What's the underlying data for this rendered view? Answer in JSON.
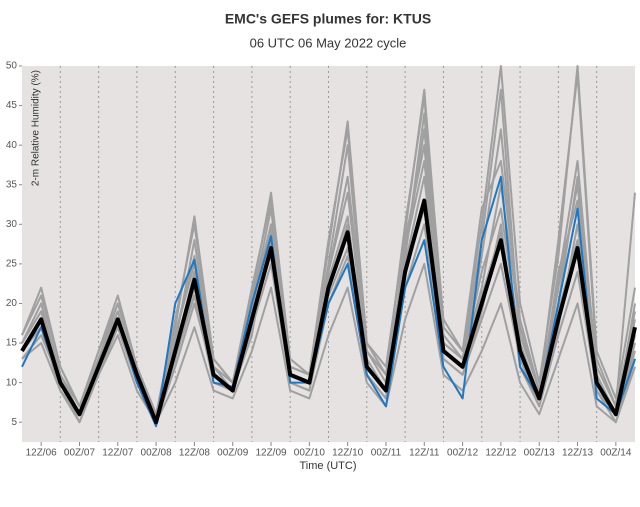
{
  "chart_data": {
    "type": "line",
    "title": "EMC's GEFS plumes for: KTUS",
    "subtitle": "06 UTC 06 May 2022 cycle",
    "ylabel": "2-m Relative Humidity (%)",
    "xlabel": "Time (UTC)",
    "categories": [
      null,
      "12Z/06",
      null,
      "00Z/07",
      null,
      "12Z/07",
      null,
      "00Z/08",
      null,
      "12Z/08",
      null,
      "00Z/09",
      null,
      "12Z/09",
      null,
      "00Z/10",
      null,
      "12Z/10",
      null,
      "00Z/11",
      null,
      "12Z/11",
      null,
      "00Z/12",
      null,
      "12Z/12",
      null,
      "00Z/13",
      null,
      "12Z/13",
      null,
      "00Z/14",
      null
    ],
    "ylim": [
      2.5,
      50
    ],
    "yticks": [
      5,
      10,
      15,
      20,
      25,
      30,
      35,
      40,
      45,
      50
    ],
    "series": [
      {
        "color": "#a0a0a0",
        "values": [
          16,
          22,
          12,
          7,
          14,
          20,
          12,
          6,
          18,
          30,
          13,
          10,
          22,
          33,
          12,
          11,
          28,
          42,
          15,
          11,
          30,
          46,
          18,
          14,
          30,
          50,
          20,
          10,
          26,
          50,
          14,
          8,
          22
        ]
      },
      {
        "color": "#a0a0a0",
        "values": [
          13,
          15,
          9,
          5,
          11,
          16,
          9,
          5,
          10,
          17,
          9,
          8,
          14,
          22,
          9,
          8,
          16,
          22,
          10,
          7,
          18,
          25,
          11,
          9,
          14,
          20,
          10,
          6,
          13,
          20,
          7,
          5,
          12
        ]
      },
      {
        "color": "#a0a0a0",
        "values": [
          15,
          19,
          11,
          6,
          13,
          19,
          11,
          6,
          16,
          26,
          12,
          9,
          20,
          30,
          11,
          10,
          24,
          34,
          13,
          9,
          27,
          38,
          15,
          13,
          24,
          32,
          15,
          8,
          22,
          35,
          11,
          6,
          20
        ]
      },
      {
        "color": "#a0a0a0",
        "values": [
          14,
          17,
          10,
          6,
          12,
          17,
          10,
          5,
          13,
          21,
          10,
          9,
          17,
          25,
          10,
          9,
          20,
          26,
          11,
          8,
          22,
          30,
          13,
          11,
          18,
          25,
          13,
          7,
          16,
          24,
          9,
          6,
          15
        ]
      },
      {
        "color": "#a0a0a0",
        "values": [
          15,
          20,
          11,
          6,
          13,
          19,
          11,
          6,
          15,
          28,
          12,
          10,
          19,
          29,
          12,
          11,
          25,
          40,
          14,
          11,
          26,
          42,
          16,
          13,
          22,
          35,
          17,
          9,
          20,
          36,
          12,
          7,
          34
        ]
      },
      {
        "color": "#a0a0a0",
        "values": [
          14,
          18,
          10,
          6,
          12,
          18,
          11,
          5,
          12,
          20,
          11,
          9,
          16,
          30,
          11,
          10,
          21,
          27,
          12,
          9,
          25,
          36,
          14,
          12,
          26,
          42,
          16,
          9,
          23,
          38,
          11,
          6,
          14
        ]
      },
      {
        "color": "#a0a0a0",
        "values": [
          13,
          16,
          10,
          5,
          11,
          17,
          10,
          5,
          14,
          24,
          10,
          9,
          19,
          26,
          10,
          9,
          23,
          31,
          11,
          8,
          28,
          40,
          13,
          11,
          19,
          30,
          12,
          7,
          17,
          30,
          10,
          6,
          18
        ]
      },
      {
        "color": "#a0a0a0",
        "values": [
          15,
          19,
          11,
          7,
          13,
          20,
          12,
          6,
          16,
          25,
          12,
          10,
          20,
          32,
          12,
          11,
          24,
          36,
          14,
          10,
          26,
          44,
          15,
          13,
          28,
          47,
          15,
          8,
          24,
          33,
          10,
          6,
          16
        ]
      },
      {
        "color": "#a0a0a0",
        "values": [
          14,
          17,
          9,
          6,
          12,
          18,
          10,
          5,
          13,
          22,
          11,
          9,
          18,
          28,
          11,
          10,
          22,
          30,
          12,
          9,
          24,
          32,
          14,
          12,
          21,
          29,
          13,
          8,
          19,
          28,
          9,
          5,
          13
        ]
      },
      {
        "color": "#a0a0a0",
        "values": [
          16,
          21,
          12,
          7,
          14,
          21,
          12,
          6,
          17,
          31,
          13,
          10,
          21,
          34,
          13,
          11,
          27,
          43,
          15,
          12,
          29,
          47,
          17,
          14,
          32,
          38,
          18,
          9,
          28,
          49,
          13,
          7,
          19
        ]
      },
      {
        "color": "#1f78c1",
        "values": [
          12,
          17,
          10,
          6,
          12,
          18,
          10,
          4.5,
          20,
          25.5,
          10,
          9.5,
          20,
          28.5,
          10,
          10,
          20,
          25,
          11,
          7,
          22,
          28,
          12,
          8,
          28,
          36,
          12,
          8,
          20,
          32,
          8,
          6,
          13
        ]
      },
      {
        "color": "#000000",
        "values": [
          14,
          18,
          10,
          6,
          12,
          18,
          11,
          5,
          14,
          23,
          11,
          9,
          18,
          27,
          11,
          10,
          22,
          29,
          12,
          9,
          24,
          33,
          14,
          12,
          20,
          28,
          14,
          8,
          18,
          27,
          10,
          6,
          17
        ]
      }
    ]
  }
}
